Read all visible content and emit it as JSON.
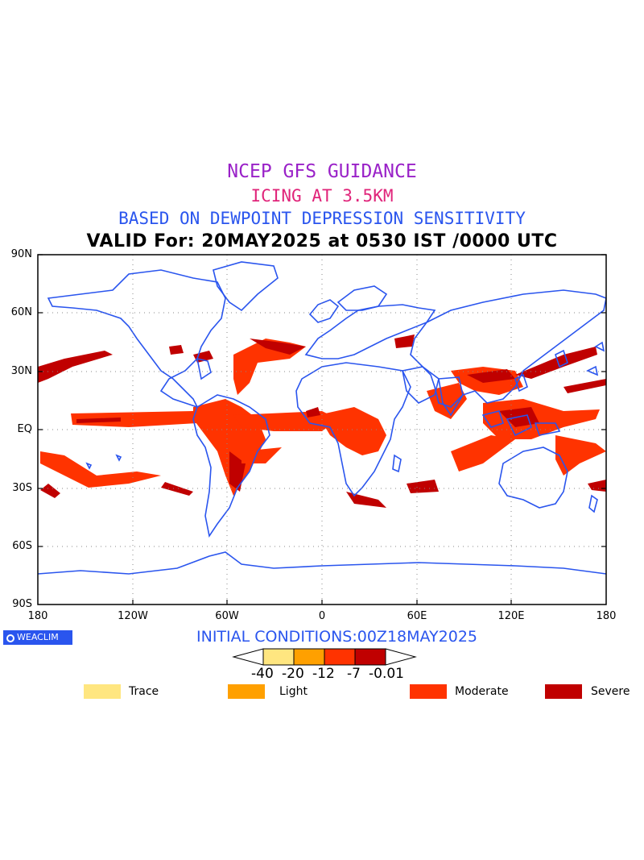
{
  "titles": {
    "line1": "NCEP GFS GUIDANCE",
    "line2": "ICING AT 3.5KM",
    "line3": "BASED ON DEWPOINT DEPRESSION SENSITIVITY",
    "line4": "VALID For: 20MAY2025 at 0530 IST /0000 UTC",
    "colors": {
      "line1": "#9a22c8",
      "line2": "#e0247a",
      "line3": "#2a55ee",
      "line4": "#000000"
    }
  },
  "map": {
    "lat_labels": [
      "90N",
      "60N",
      "30N",
      "EQ",
      "30S",
      "60S",
      "90S"
    ],
    "lon_labels": [
      "180",
      "120W",
      "60W",
      "0",
      "60E",
      "120E",
      "180"
    ],
    "coast_color": "#2a55ee",
    "grid": true
  },
  "logo": {
    "text": "WEACLIM"
  },
  "initial_conditions": "INITIAL CONDITIONS:00Z18MAY2025",
  "colorbar": {
    "labels": [
      "-40",
      "-20",
      "-12",
      "-7",
      "-0.01"
    ],
    "colors": [
      "#ffe680",
      "#ffa000",
      "#ff3300",
      "#c00000"
    ]
  },
  "legend": [
    {
      "label": "Trace",
      "color": "#ffe680"
    },
    {
      "label": "Light",
      "color": "#ffa000"
    },
    {
      "label": "Moderate",
      "color": "#ff3300"
    },
    {
      "label": "Severe",
      "color": "#c00000"
    }
  ]
}
